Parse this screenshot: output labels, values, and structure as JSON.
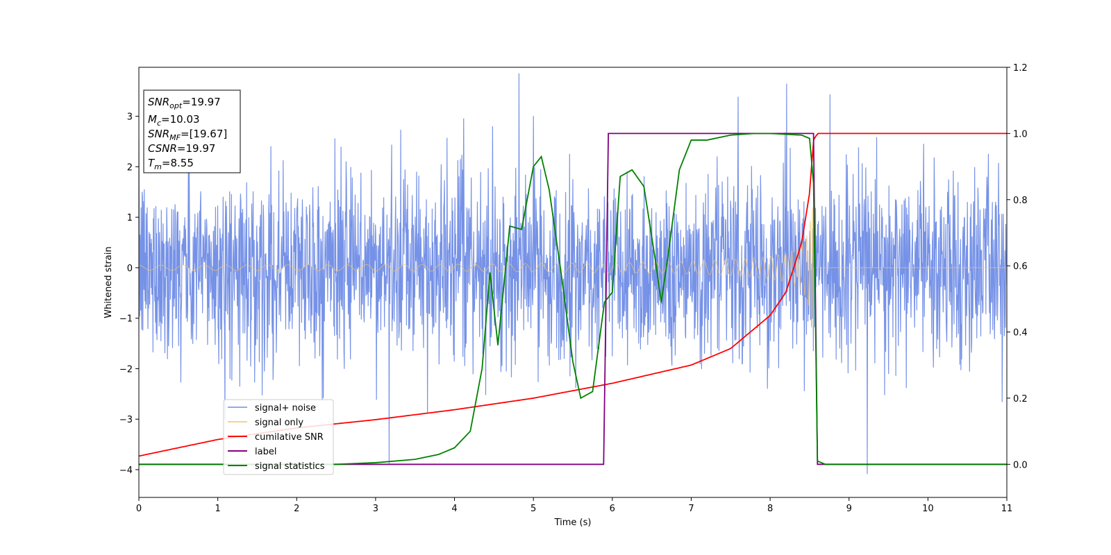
{
  "chart_data": {
    "type": "line",
    "xlabel": "Time (s)",
    "ylabel": "Whitened strain",
    "xlim": [
      0,
      11
    ],
    "ylim_left": [
      -4.55,
      3.97
    ],
    "ylim_right": [
      -0.1,
      1.2
    ],
    "xticks": [
      "0",
      "1",
      "2",
      "3",
      "4",
      "5",
      "6",
      "7",
      "8",
      "9",
      "10",
      "11"
    ],
    "yticks_left": [
      "3",
      "2",
      "1",
      "0",
      "−1",
      "−2",
      "−3",
      "−4"
    ],
    "yticks_left_values": [
      3,
      2,
      1,
      0,
      -1,
      -2,
      -3,
      -4
    ],
    "yticks_right": [
      "1.2",
      "1.0",
      "0.8",
      "0.6",
      "0.4",
      "0.2",
      "0.0"
    ],
    "yticks_right_values": [
      1.2,
      1.0,
      0.8,
      0.6,
      0.4,
      0.2,
      0.0
    ],
    "grid": false,
    "legend_position": "lower-left",
    "info_box": {
      "snr_opt": {
        "sym": "SNR",
        "sub": "opt",
        "rest": "=19.97"
      },
      "mc": {
        "sym": "M",
        "sub": "c",
        "rest": "=10.03"
      },
      "snr_mf": {
        "sym": "SNR",
        "sub": "MF",
        "rest": "=[19.67]"
      },
      "csnr": {
        "sym": "CSNR",
        "sub": "",
        "rest": "=19.97"
      },
      "tm": {
        "sym": "T",
        "sub": "m",
        "rest": "=8.55"
      }
    },
    "series": [
      {
        "name": "signal+ noise",
        "axis": "left",
        "color": "#6f8ce6",
        "noise_std": 0.9,
        "t_merge": 8.55
      },
      {
        "name": "signal only",
        "axis": "left",
        "color": "#f5c46a",
        "amp_start": 0.05,
        "amp_peak": 1.2,
        "t_merge": 8.55
      },
      {
        "name": "cumilative SNR",
        "axis": "right",
        "color": "#ff0000",
        "x": [
          0,
          1,
          2,
          3,
          4,
          5,
          6,
          7,
          7.5,
          8,
          8.2,
          8.4,
          8.5,
          8.55,
          8.6,
          11
        ],
        "y": [
          0.025,
          0.075,
          0.11,
          0.135,
          0.165,
          0.2,
          0.245,
          0.3,
          0.35,
          0.45,
          0.52,
          0.67,
          0.82,
          0.98,
          1.0,
          1.0
        ]
      },
      {
        "name": "label",
        "axis": "right",
        "color": "#800080",
        "x": [
          0,
          5.89,
          5.95,
          8.55,
          8.6,
          11
        ],
        "y": [
          0,
          0,
          1,
          1,
          0,
          0
        ]
      },
      {
        "name": "signal statistics",
        "axis": "right",
        "color": "#008000",
        "x": [
          0,
          2.5,
          3.0,
          3.5,
          3.8,
          4.0,
          4.2,
          4.35,
          4.45,
          4.55,
          4.7,
          4.85,
          5.0,
          5.1,
          5.2,
          5.35,
          5.5,
          5.6,
          5.75,
          5.9,
          6.0,
          6.1,
          6.25,
          6.4,
          6.55,
          6.62,
          6.7,
          6.85,
          7.0,
          7.2,
          7.5,
          7.8,
          8.0,
          8.4,
          8.5,
          8.55,
          8.6,
          8.7,
          11
        ],
        "y": [
          0,
          0,
          0.005,
          0.015,
          0.03,
          0.05,
          0.1,
          0.29,
          0.58,
          0.36,
          0.72,
          0.71,
          0.9,
          0.93,
          0.83,
          0.58,
          0.31,
          0.2,
          0.22,
          0.49,
          0.52,
          0.87,
          0.89,
          0.84,
          0.61,
          0.49,
          0.62,
          0.89,
          0.98,
          0.98,
          0.995,
          1.0,
          1.0,
          0.995,
          0.985,
          0.85,
          0.01,
          0,
          0
        ]
      }
    ]
  }
}
